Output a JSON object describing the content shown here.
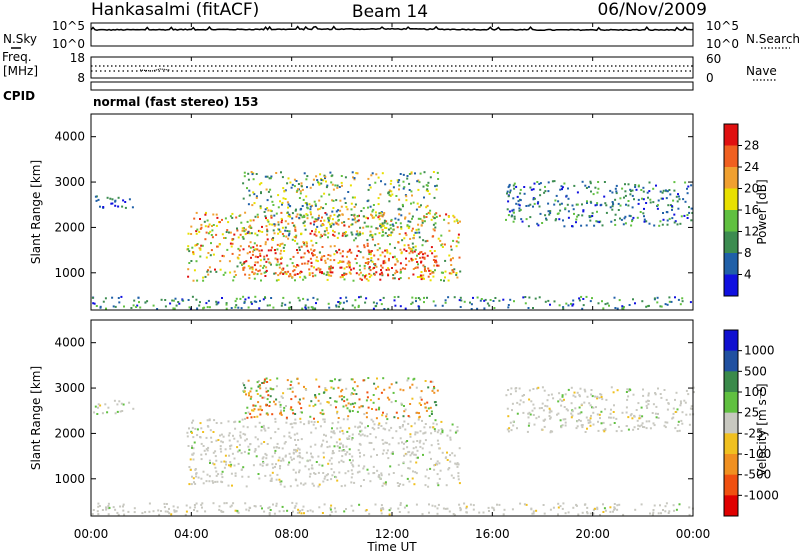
{
  "header": {
    "station": "Hankasalmi (fitACF)",
    "beam": "Beam 14",
    "date": "06/Nov/2009"
  },
  "mode_label": "normal (fast stereo) 153",
  "colors": {
    "power_scale": [
      "#1010e0",
      "#2060a8",
      "#3c8c50",
      "#60c040",
      "#e8e000",
      "#f0a030",
      "#f06020",
      "#e01010"
    ],
    "velocity_scale": [
      "#1010d0",
      "#2050a0",
      "#3a8a4a",
      "#60c040",
      "#c8c8c0",
      "#f0c020",
      "#f09020",
      "#f05010",
      "#e00000"
    ]
  },
  "chart_data": [
    {
      "type": "line",
      "panel": "noise",
      "left_label": "N.Sky",
      "right_label": "N.Search",
      "left_ticks": [
        "10^5",
        "10^0"
      ],
      "right_ticks": [
        "10^5",
        "10^0"
      ],
      "series": [
        {
          "name": "N.Sky",
          "style": "solid",
          "x": [
            "00:00",
            "06:00",
            "12:00",
            "18:00",
            "24:00"
          ],
          "y_log10": [
            3.5,
            3.6,
            3.7,
            3.5,
            3.5
          ]
        },
        {
          "name": "N.Search",
          "style": "dotted",
          "x": [
            "00:00",
            "24:00"
          ],
          "y_log10": [
            3.5,
            3.5
          ]
        }
      ]
    },
    {
      "type": "line",
      "panel": "frequency",
      "left_label": "Freq.",
      "left_unit": "[MHz]",
      "left_ticks": [
        "18",
        "8"
      ],
      "right_label": "Nave",
      "right_ticks": [
        "60",
        "0"
      ],
      "cpid_label": "CPID",
      "series": [
        {
          "name": "Freq.",
          "style": "dotted",
          "x": [
            "00:00",
            "24:00"
          ],
          "y": [
            12,
            12
          ]
        },
        {
          "name": "Nave",
          "style": "dotted",
          "x": [
            "00:00",
            "24:00"
          ],
          "y": [
            33,
            33
          ]
        }
      ]
    },
    {
      "type": "heatmap",
      "panel": "power",
      "ylabel": "Slant Range [km]",
      "y_ticks": [
        "1000",
        "2000",
        "3000",
        "4000"
      ],
      "ylim": [
        180,
        4500
      ],
      "x_ticks": [
        "00:00",
        "04:00",
        "08:00",
        "12:00",
        "16:00",
        "20:00",
        "00:00"
      ],
      "xlim_hours": [
        0,
        24
      ],
      "colorbar_label": "Power [dB]",
      "colorbar_ticks": [
        "4",
        "8",
        "12",
        "16",
        "20",
        "24",
        "28"
      ],
      "echo_regions": [
        {
          "t0": 0.0,
          "t1": 24.0,
          "r0": 180,
          "r1": 450,
          "vmin": 2,
          "vmax": 16
        },
        {
          "t0": 0.0,
          "t1": 1.7,
          "r0": 2400,
          "r1": 2700,
          "vmin": 2,
          "vmax": 10
        },
        {
          "t0": 3.8,
          "t1": 14.7,
          "r0": 800,
          "r1": 2300,
          "vmin": 10,
          "vmax": 30
        },
        {
          "t0": 6.0,
          "t1": 13.8,
          "r0": 900,
          "r1": 1500,
          "vmin": 22,
          "vmax": 32
        },
        {
          "t0": 6.0,
          "t1": 13.8,
          "r0": 1800,
          "r1": 3200,
          "vmin": 4,
          "vmax": 24
        },
        {
          "t0": 16.5,
          "t1": 24.0,
          "r0": 2000,
          "r1": 3000,
          "vmin": 2,
          "vmax": 14
        }
      ]
    },
    {
      "type": "heatmap",
      "panel": "velocity",
      "ylabel": "Slant Range [km]",
      "y_ticks": [
        "1000",
        "2000",
        "3000",
        "4000"
      ],
      "ylim": [
        180,
        4500
      ],
      "x_ticks": [
        "00:00",
        "04:00",
        "08:00",
        "12:00",
        "16:00",
        "20:00",
        "00:00"
      ],
      "xlim_hours": [
        0,
        24
      ],
      "xlabel": "Time UT",
      "colorbar_label": "Velocity [m s⁻¹]",
      "colorbar_ticks": [
        "1000",
        "500",
        "100",
        "25",
        "-25",
        "-100",
        "-500",
        "-1000"
      ],
      "echo_regions": [
        {
          "t0": 0.0,
          "t1": 24.0,
          "r0": 180,
          "r1": 450,
          "class": "low"
        },
        {
          "t0": 0.0,
          "t1": 1.7,
          "r0": 2400,
          "r1": 2700,
          "class": "low"
        },
        {
          "t0": 3.8,
          "t1": 14.7,
          "r0": 800,
          "r1": 2300,
          "class": "low"
        },
        {
          "t0": 6.0,
          "t1": 13.8,
          "r0": 2300,
          "r1": 3200,
          "class": "mixed"
        },
        {
          "t0": 16.5,
          "t1": 24.0,
          "r0": 2000,
          "r1": 3000,
          "class": "low"
        }
      ]
    }
  ]
}
